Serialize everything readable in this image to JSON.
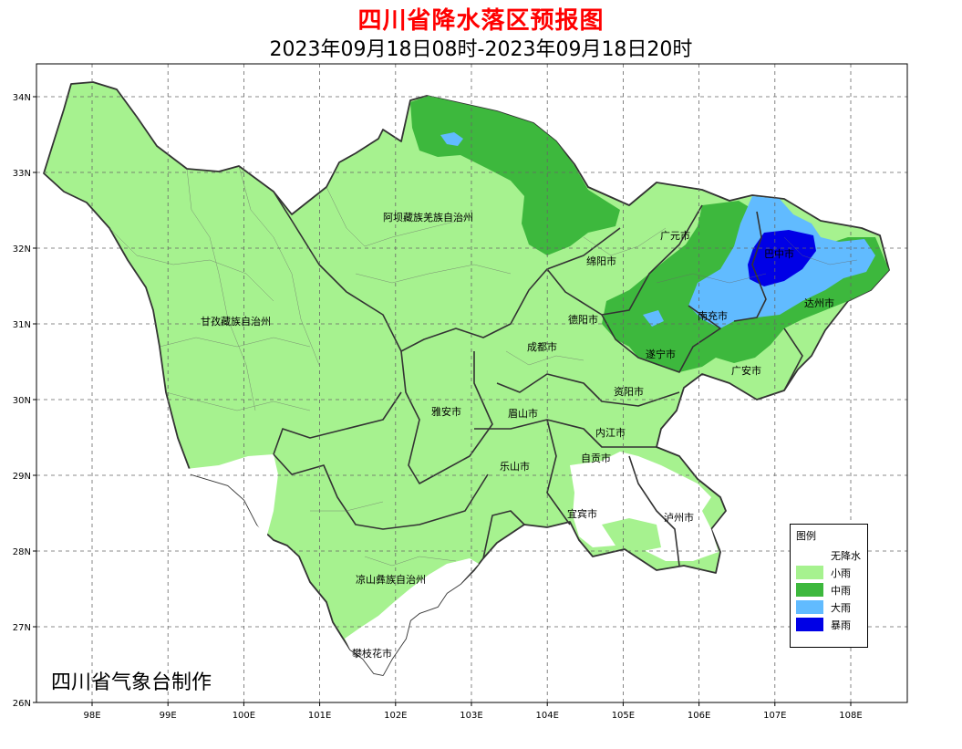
{
  "header": {
    "title": "四川省降水落区预报图",
    "subtitle": "2023年09月18日08时-2023年09月18日20时"
  },
  "axes": {
    "lon_ticks": [
      "98E",
      "99E",
      "100E",
      "101E",
      "102E",
      "103E",
      "104E",
      "105E",
      "106E",
      "107E",
      "108E"
    ],
    "lat_ticks": [
      "34N",
      "33N",
      "32N",
      "31N",
      "30N",
      "29N",
      "28N",
      "27N",
      "26N"
    ]
  },
  "map_colors": {
    "small_rain": "#a6f28f",
    "moderate_rain": "#3db83d",
    "heavy_rain": "#61bbff",
    "rainstorm": "#0000e6",
    "no_rain": "#ffffff",
    "border": "#333333"
  },
  "regions": [
    {
      "name": "阿坝藏族羌族自治州"
    },
    {
      "name": "广元市"
    },
    {
      "name": "巴中市"
    },
    {
      "name": "绵阳市"
    },
    {
      "name": "甘孜藏族自治州"
    },
    {
      "name": "德阳市"
    },
    {
      "name": "南充市"
    },
    {
      "name": "达州市"
    },
    {
      "name": "成都市"
    },
    {
      "name": "遂宁市"
    },
    {
      "name": "广安市"
    },
    {
      "name": "资阳市"
    },
    {
      "name": "雅安市"
    },
    {
      "name": "眉山市"
    },
    {
      "name": "内江市"
    },
    {
      "name": "自贡市"
    },
    {
      "name": "乐山市"
    },
    {
      "name": "宜宾市"
    },
    {
      "name": "泸州市"
    },
    {
      "name": "凉山彝族自治州"
    },
    {
      "name": "攀枝花市"
    }
  ],
  "legend": {
    "title": "图例",
    "items": [
      {
        "label": "无降水",
        "color": "#ffffff"
      },
      {
        "label": "小雨",
        "color": "#a6f28f"
      },
      {
        "label": "中雨",
        "color": "#3db83d"
      },
      {
        "label": "大雨",
        "color": "#61bbff"
      },
      {
        "label": "暴雨",
        "color": "#0000e6"
      }
    ]
  },
  "credit": "四川省气象台制作"
}
